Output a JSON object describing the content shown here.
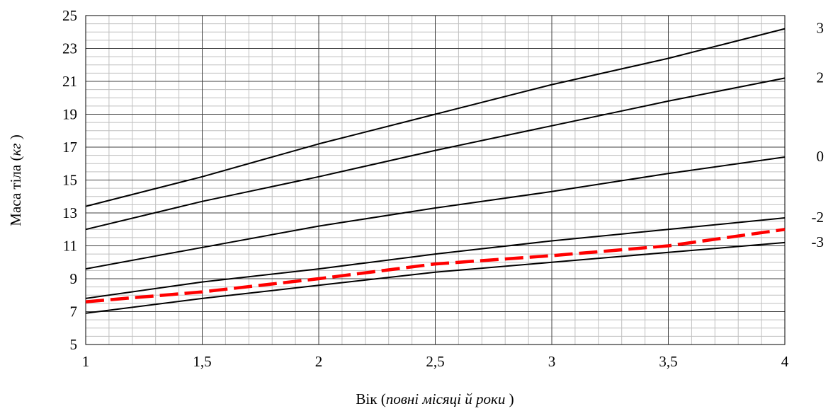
{
  "chart_data": {
    "type": "line",
    "title": "",
    "xlabel": {
      "prefix": "Вік (",
      "italic": "повні місяці й роки",
      "suffix": " )"
    },
    "ylabel": {
      "prefix": "Маса тіла (",
      "italic": "кг",
      "suffix": " )"
    },
    "xlim": [
      1,
      4
    ],
    "ylim": [
      5,
      25
    ],
    "x_ticks": [
      1,
      1.5,
      2,
      2.5,
      3,
      3.5,
      4
    ],
    "x_tick_labels": [
      "1",
      "1,5",
      "2",
      "2,5",
      "3",
      "3,5",
      "4"
    ],
    "y_ticks": [
      5,
      7,
      9,
      11,
      13,
      15,
      17,
      19,
      21,
      23,
      25
    ],
    "y_tick_labels": [
      "5",
      "7",
      "9",
      "11",
      "13",
      "15",
      "17",
      "19",
      "21",
      "23",
      "25"
    ],
    "grid": {
      "major": true,
      "minor": true
    },
    "x": [
      1,
      1.5,
      2,
      2.5,
      3,
      3.5,
      4
    ],
    "series": [
      {
        "label": "3",
        "values": [
          13.4,
          15.2,
          17.2,
          19.0,
          20.8,
          22.4,
          24.2
        ],
        "color": "#000000",
        "dashed": false
      },
      {
        "label": "2",
        "values": [
          12.0,
          13.7,
          15.2,
          16.8,
          18.3,
          19.8,
          21.2
        ],
        "color": "#000000",
        "dashed": false
      },
      {
        "label": "0",
        "values": [
          9.6,
          10.9,
          12.2,
          13.3,
          14.3,
          15.4,
          16.4
        ],
        "color": "#000000",
        "dashed": false
      },
      {
        "label": "-2",
        "values": [
          7.8,
          8.8,
          9.6,
          10.5,
          11.3,
          12.0,
          12.7
        ],
        "color": "#000000",
        "dashed": false
      },
      {
        "label": "-3",
        "values": [
          6.9,
          7.8,
          8.6,
          9.4,
          10.0,
          10.6,
          11.2
        ],
        "color": "#000000",
        "dashed": false
      },
      {
        "label": "",
        "values": [
          7.6,
          8.2,
          9.0,
          9.9,
          10.4,
          11.0,
          12.0
        ],
        "color": "#ff0000",
        "dashed": true
      }
    ]
  }
}
